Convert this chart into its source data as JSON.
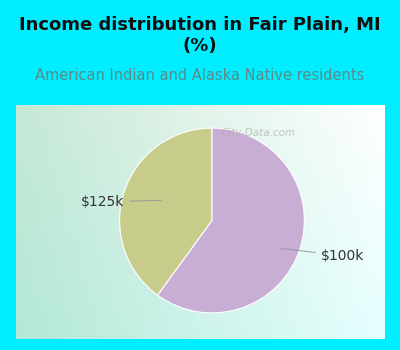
{
  "title": "Income distribution in Fair Plain, MI\n(%)",
  "subtitle": "American Indian and Alaska Native residents",
  "slices": [
    {
      "label": "$125k",
      "value": 40,
      "color": "#c8cc8a"
    },
    {
      "label": "$100k",
      "value": 60,
      "color": "#c8aed4"
    }
  ],
  "title_fontsize": 13,
  "subtitle_fontsize": 10.5,
  "title_color": "#111111",
  "subtitle_color": "#5a8a8a",
  "background_top": "#00eeff",
  "label_fontsize": 10,
  "label_color": "#333333",
  "startangle": 90,
  "chart_bg_left": "#c8e8d8",
  "chart_bg_right": "#f0f4f8",
  "watermark_color": "#aaaaaa"
}
